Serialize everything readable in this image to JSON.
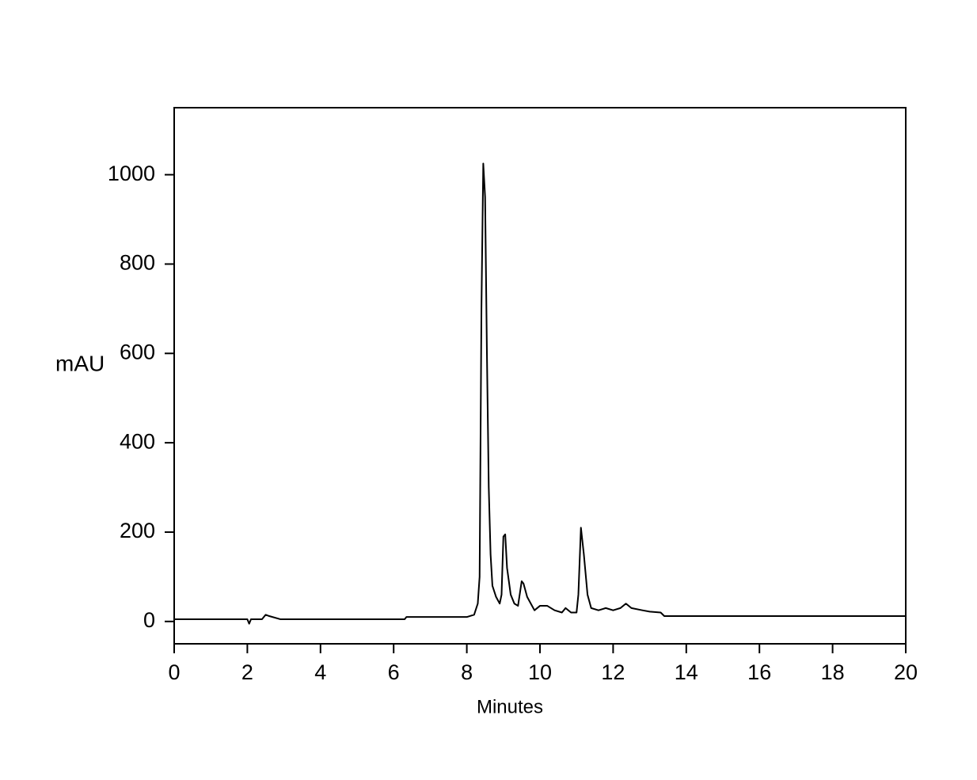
{
  "chart_data": {
    "type": "line",
    "xlabel": "Minutes",
    "ylabel": "mAU",
    "xlim": [
      0,
      20
    ],
    "xticks": [
      0,
      2,
      4,
      6,
      8,
      10,
      12,
      14,
      16,
      18,
      20
    ],
    "ylim": [
      -50,
      1150
    ],
    "yticks": [
      0,
      200,
      400,
      600,
      800,
      1000
    ],
    "color": "#000000",
    "x": [
      0,
      2.0,
      2.05,
      2.1,
      2.4,
      2.5,
      2.6,
      2.9,
      6.3,
      6.35,
      8.0,
      8.2,
      8.3,
      8.35,
      8.4,
      8.45,
      8.5,
      8.55,
      8.6,
      8.65,
      8.7,
      8.8,
      8.9,
      8.95,
      9.0,
      9.05,
      9.1,
      9.2,
      9.3,
      9.4,
      9.5,
      9.55,
      9.65,
      9.75,
      9.85,
      10.0,
      10.2,
      10.4,
      10.6,
      10.7,
      10.85,
      11.0,
      11.05,
      11.12,
      11.2,
      11.3,
      11.4,
      11.6,
      11.8,
      12.0,
      12.2,
      12.35,
      12.5,
      12.8,
      13.0,
      13.3,
      13.4,
      20
    ],
    "values": [
      5,
      5,
      -5,
      5,
      5,
      15,
      12,
      5,
      5,
      10,
      10,
      15,
      40,
      100,
      700,
      1025,
      950,
      600,
      300,
      150,
      80,
      55,
      40,
      60,
      190,
      195,
      120,
      60,
      40,
      35,
      90,
      85,
      55,
      40,
      25,
      35,
      35,
      25,
      20,
      30,
      20,
      20,
      60,
      210,
      150,
      60,
      30,
      25,
      30,
      25,
      30,
      40,
      30,
      25,
      22,
      20,
      12,
      12
    ]
  }
}
